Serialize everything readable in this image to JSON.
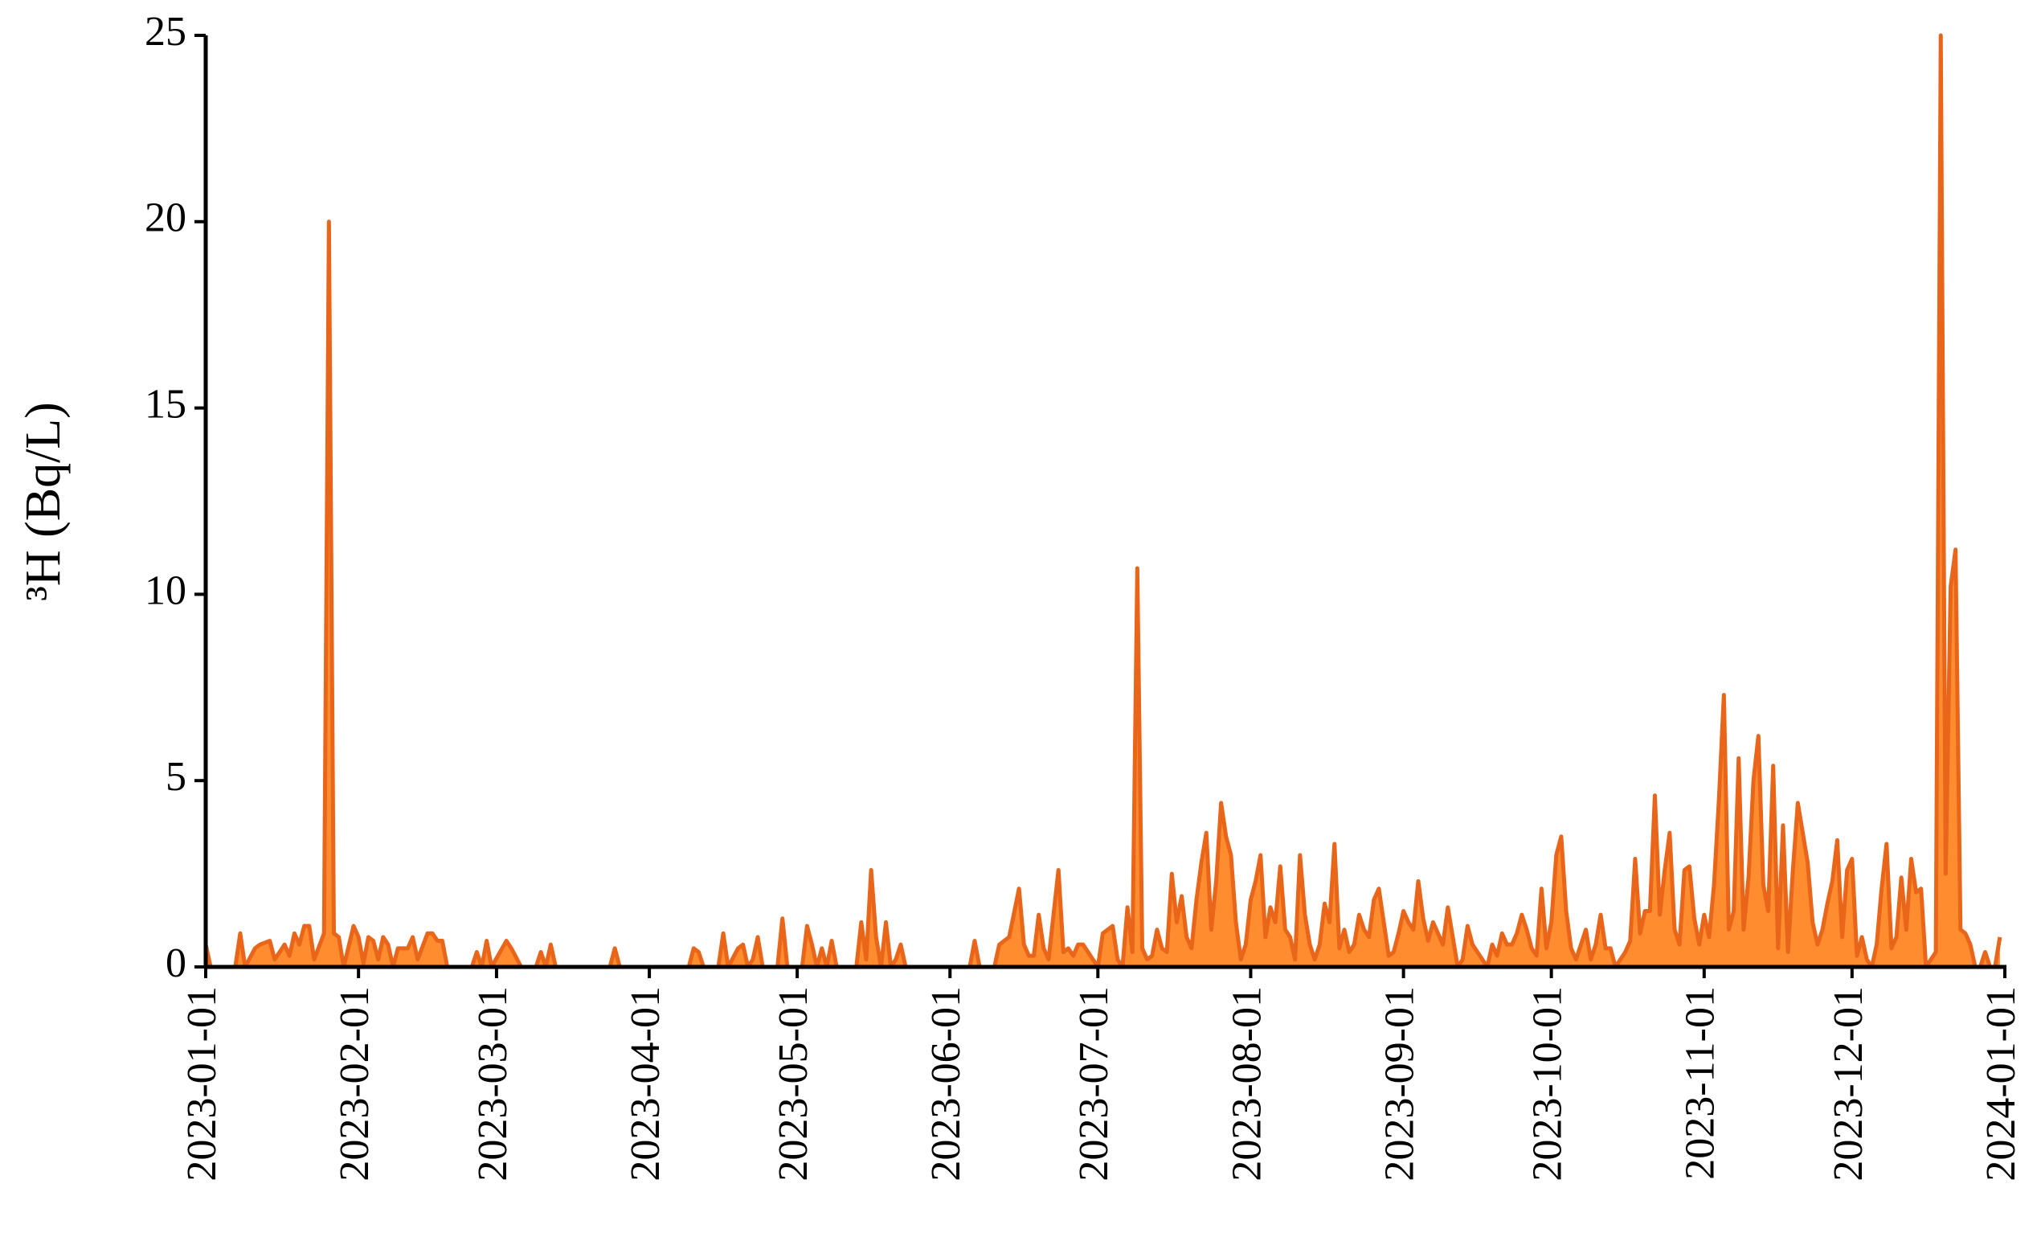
{
  "chart_data": {
    "type": "area",
    "y_label": "³H (Bq/L)",
    "x": [
      "2023-01-01",
      "2023-01-02",
      "2023-01-07",
      "2023-01-08",
      "2023-01-09",
      "2023-01-11",
      "2023-01-12",
      "2023-01-14",
      "2023-01-15",
      "2023-01-17",
      "2023-01-18",
      "2023-01-19",
      "2023-01-20",
      "2023-01-21",
      "2023-01-22",
      "2023-01-23",
      "2023-01-25",
      "2023-01-26",
      "2023-01-27",
      "2023-01-28",
      "2023-01-29",
      "2023-01-31",
      "2023-02-01",
      "2023-02-02",
      "2023-02-03",
      "2023-02-04",
      "2023-02-05",
      "2023-02-06",
      "2023-02-07",
      "2023-02-08",
      "2023-02-09",
      "2023-02-11",
      "2023-02-12",
      "2023-02-13",
      "2023-02-15",
      "2023-02-16",
      "2023-02-17",
      "2023-02-18",
      "2023-02-19",
      "2023-02-24",
      "2023-02-25",
      "2023-02-26",
      "2023-02-27",
      "2023-02-28",
      "2023-03-03",
      "2023-03-04",
      "2023-03-06",
      "2023-03-09",
      "2023-03-10",
      "2023-03-11",
      "2023-03-12",
      "2023-03-13",
      "2023-03-24",
      "2023-03-25",
      "2023-03-26",
      "2023-04-09",
      "2023-04-10",
      "2023-04-11",
      "2023-04-12",
      "2023-04-15",
      "2023-04-16",
      "2023-04-17",
      "2023-04-19",
      "2023-04-20",
      "2023-04-21",
      "2023-04-22",
      "2023-04-23",
      "2023-04-24",
      "2023-04-27",
      "2023-04-28",
      "2023-04-29",
      "2023-05-02",
      "2023-05-03",
      "2023-05-04",
      "2023-05-05",
      "2023-05-06",
      "2023-05-07",
      "2023-05-08",
      "2023-05-09",
      "2023-05-13",
      "2023-05-14",
      "2023-05-15",
      "2023-05-16",
      "2023-05-17",
      "2023-05-18",
      "2023-05-19",
      "2023-05-20",
      "2023-05-21",
      "2023-05-22",
      "2023-05-23",
      "2023-06-05",
      "2023-06-06",
      "2023-06-07",
      "2023-06-10",
      "2023-06-11",
      "2023-06-13",
      "2023-06-15",
      "2023-06-16",
      "2023-06-17",
      "2023-06-18",
      "2023-06-19",
      "2023-06-20",
      "2023-06-21",
      "2023-06-23",
      "2023-06-24",
      "2023-06-25",
      "2023-06-26",
      "2023-06-27",
      "2023-06-28",
      "2023-06-29",
      "2023-06-30",
      "2023-07-01",
      "2023-07-02",
      "2023-07-03",
      "2023-07-04",
      "2023-07-05",
      "2023-07-06",
      "2023-07-07",
      "2023-07-08",
      "2023-07-09",
      "2023-07-10",
      "2023-07-11",
      "2023-07-12",
      "2023-07-13",
      "2023-07-14",
      "2023-07-15",
      "2023-07-16",
      "2023-07-17",
      "2023-07-18",
      "2023-07-19",
      "2023-07-20",
      "2023-07-21",
      "2023-07-22",
      "2023-07-23",
      "2023-07-24",
      "2023-07-25",
      "2023-07-26",
      "2023-07-27",
      "2023-07-28",
      "2023-07-29",
      "2023-07-30",
      "2023-07-31",
      "2023-08-01",
      "2023-08-02",
      "2023-08-03",
      "2023-08-04",
      "2023-08-05",
      "2023-08-06",
      "2023-08-07",
      "2023-08-08",
      "2023-08-09",
      "2023-08-10",
      "2023-08-11",
      "2023-08-12",
      "2023-08-13",
      "2023-08-14",
      "2023-08-15",
      "2023-08-16",
      "2023-08-17",
      "2023-08-18",
      "2023-08-19",
      "2023-08-20",
      "2023-08-21",
      "2023-08-22",
      "2023-08-23",
      "2023-08-24",
      "2023-08-25",
      "2023-08-26",
      "2023-08-27",
      "2023-08-28",
      "2023-08-29",
      "2023-08-30",
      "2023-08-31",
      "2023-09-01",
      "2023-09-02",
      "2023-09-03",
      "2023-09-04",
      "2023-09-05",
      "2023-09-06",
      "2023-09-07",
      "2023-09-08",
      "2023-09-09",
      "2023-09-10",
      "2023-09-11",
      "2023-09-12",
      "2023-09-13",
      "2023-09-14",
      "2023-09-15",
      "2023-09-16",
      "2023-09-17",
      "2023-09-18",
      "2023-09-19",
      "2023-09-20",
      "2023-09-21",
      "2023-09-22",
      "2023-09-23",
      "2023-09-24",
      "2023-09-25",
      "2023-09-26",
      "2023-09-27",
      "2023-09-28",
      "2023-09-29",
      "2023-09-30",
      "2023-10-01",
      "2023-10-02",
      "2023-10-03",
      "2023-10-04",
      "2023-10-05",
      "2023-10-06",
      "2023-10-07",
      "2023-10-08",
      "2023-10-09",
      "2023-10-10",
      "2023-10-11",
      "2023-10-12",
      "2023-10-13",
      "2023-10-14",
      "2023-10-16",
      "2023-10-17",
      "2023-10-18",
      "2023-10-19",
      "2023-10-20",
      "2023-10-21",
      "2023-10-22",
      "2023-10-23",
      "2023-10-24",
      "2023-10-25",
      "2023-10-26",
      "2023-10-27",
      "2023-10-28",
      "2023-10-29",
      "2023-10-30",
      "2023-10-31",
      "2023-11-01",
      "2023-11-02",
      "2023-11-03",
      "2023-11-04",
      "2023-11-05",
      "2023-11-06",
      "2023-11-07",
      "2023-11-08",
      "2023-11-09",
      "2023-11-10",
      "2023-11-11",
      "2023-11-12",
      "2023-11-13",
      "2023-11-14",
      "2023-11-15",
      "2023-11-16",
      "2023-11-17",
      "2023-11-18",
      "2023-11-19",
      "2023-11-20",
      "2023-11-21",
      "2023-11-22",
      "2023-11-23",
      "2023-11-24",
      "2023-11-25",
      "2023-11-26",
      "2023-11-27",
      "2023-11-28",
      "2023-11-29",
      "2023-11-30",
      "2023-12-01",
      "2023-12-02",
      "2023-12-03",
      "2023-12-04",
      "2023-12-05",
      "2023-12-06",
      "2023-12-07",
      "2023-12-08",
      "2023-12-09",
      "2023-12-10",
      "2023-12-11",
      "2023-12-12",
      "2023-12-13",
      "2023-12-14",
      "2023-12-15",
      "2023-12-16",
      "2023-12-18",
      "2023-12-19",
      "2023-12-20",
      "2023-12-21",
      "2023-12-22",
      "2023-12-23",
      "2023-12-24",
      "2023-12-25",
      "2023-12-26",
      "2023-12-27",
      "2023-12-28",
      "2023-12-29",
      "2023-12-30",
      "2023-12-31"
    ],
    "series": [
      {
        "color": "#ff8c2e",
        "line_color": "#e8651a",
        "values": [
          0.6,
          0,
          0,
          0.9,
          0,
          0.5,
          0.6,
          0.7,
          0.2,
          0.6,
          0.3,
          0.9,
          0.6,
          1.1,
          1.1,
          0.2,
          0.9,
          20,
          0.9,
          0.8,
          0,
          1.1,
          0.8,
          0.1,
          0.8,
          0.7,
          0.2,
          0.8,
          0.6,
          0,
          0.5,
          0.5,
          0.8,
          0.2,
          0.9,
          0.9,
          0.7,
          0.7,
          0,
          0,
          0.4,
          0,
          0.7,
          0,
          0.7,
          0.5,
          0,
          0,
          0.4,
          0,
          0.6,
          0,
          0,
          0.5,
          0,
          0,
          0.5,
          0.4,
          0,
          0,
          0.9,
          0,
          0.5,
          0.6,
          0,
          0.2,
          0.8,
          0,
          0,
          1.3,
          0,
          0,
          1.1,
          0.6,
          0,
          0.5,
          0,
          0.7,
          0,
          0,
          1.2,
          0.2,
          2.6,
          0.8,
          0,
          1.2,
          0,
          0.2,
          0.6,
          0,
          0,
          0.7,
          0,
          0,
          0.6,
          0.8,
          2.1,
          0.6,
          0.3,
          0.3,
          1.4,
          0.5,
          0.2,
          2.6,
          0.4,
          0.5,
          0.3,
          0.6,
          0.6,
          0.4,
          0.2,
          0,
          0.9,
          1.0,
          1.1,
          0.2,
          0,
          1.6,
          0.4,
          10.7,
          0.5,
          0.2,
          0.3,
          1.0,
          0.5,
          0.4,
          2.5,
          1.2,
          1.9,
          0.8,
          0.5,
          1.8,
          2.8,
          3.6,
          1.0,
          2.3,
          4.4,
          3.5,
          3.0,
          1.2,
          0.2,
          0.6,
          1.8,
          2.3,
          3.0,
          0.8,
          1.6,
          1.2,
          2.7,
          1.0,
          0.8,
          0.2,
          3.0,
          1.4,
          0.6,
          0.2,
          0.6,
          1.7,
          1.2,
          3.3,
          0.5,
          1.0,
          0.4,
          0.6,
          1.4,
          1.0,
          0.8,
          1.8,
          2.1,
          1.2,
          0.3,
          0.4,
          0.9,
          1.5,
          1.2,
          1.0,
          2.3,
          1.3,
          0.7,
          1.2,
          0.9,
          0.6,
          1.6,
          0.8,
          0,
          0.2,
          1.1,
          0.6,
          0.4,
          0.2,
          0,
          0.6,
          0.3,
          0.9,
          0.6,
          0.6,
          0.9,
          1.4,
          1.0,
          0.5,
          0.3,
          2.1,
          0.5,
          1.2,
          3.0,
          3.5,
          1.5,
          0.5,
          0.2,
          0.6,
          1.0,
          0.2,
          0.6,
          1.4,
          0.5,
          0.5,
          0,
          0.4,
          0.7,
          2.9,
          0.9,
          1.5,
          1.5,
          4.6,
          1.4,
          2.6,
          3.6,
          1.0,
          0.6,
          2.6,
          2.7,
          1.3,
          0.6,
          1.4,
          0.8,
          2.2,
          4.5,
          7.3,
          1.0,
          1.5,
          5.6,
          1.0,
          2.4,
          5.0,
          6.2,
          2.2,
          1.5,
          5.4,
          0.5,
          3.8,
          0.4,
          2.6,
          4.4,
          3.6,
          2.8,
          1.2,
          0.6,
          1.0,
          1.7,
          2.3,
          3.4,
          0.8,
          2.6,
          2.9,
          0.3,
          0.8,
          0.2,
          0,
          0.6,
          2.1,
          3.3,
          0.5,
          0.8,
          2.4,
          1.0,
          2.9,
          2.0,
          2.1,
          0,
          0.4,
          25,
          2.5,
          10.2,
          11.2,
          1.0,
          0.9,
          0.6,
          0,
          0,
          0.4,
          0,
          0,
          0.8
        ]
      }
    ],
    "xlim": [
      "2023-01-01",
      "2024-01-01"
    ],
    "xticks": [
      "2023-01-01",
      "2023-02-01",
      "2023-03-01",
      "2023-04-01",
      "2023-05-01",
      "2023-06-01",
      "2023-07-01",
      "2023-08-01",
      "2023-09-01",
      "2023-10-01",
      "2023-11-01",
      "2023-12-01",
      "2024-01-01"
    ],
    "ylim": [
      0,
      25
    ],
    "yticks": [
      0,
      5,
      10,
      15,
      20,
      25
    ]
  }
}
